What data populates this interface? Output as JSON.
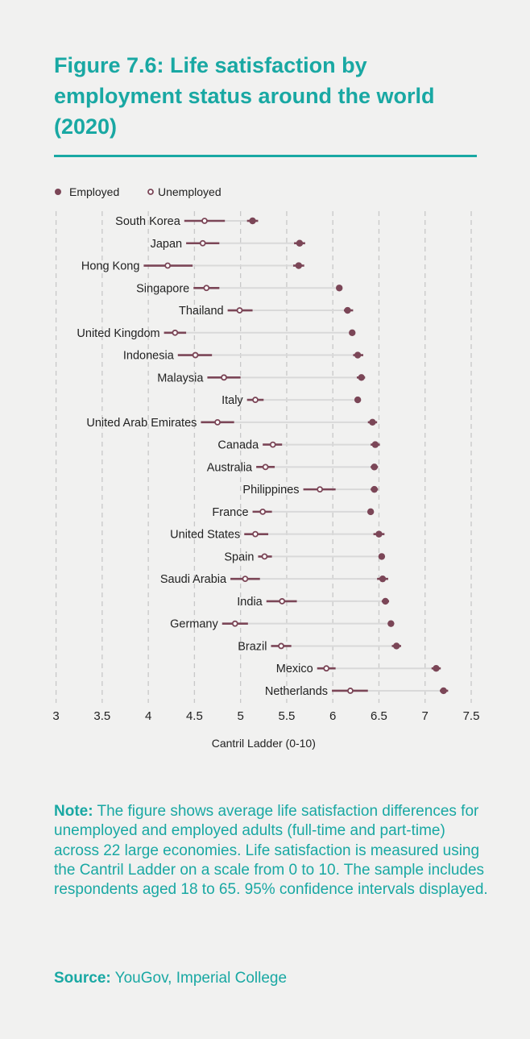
{
  "title": "Figure 7.6: Life satisfaction by employment status around the world (2020)",
  "note_label": "Note:",
  "note_text": " The figure shows average life satisfaction differences for unemployed and employed adults (full-time and part-time) across 22 large economies. Life satisfaction is measured using the Cantril Ladder on a scale from 0 to 10. The sample includes respondents aged 18 to 65. 95% confidence intervals displayed.",
  "source_label": "Source:",
  "source_text": " YouGov, Imperial College",
  "colors": {
    "accent": "#19a8a3",
    "series": "#7b4657",
    "ci_link": "#d9d9d9",
    "grid": "#c8c8c8"
  },
  "chart_data": {
    "type": "dot-plot with confidence intervals",
    "xlabel": "Cantril Ladder (0-10)",
    "xlim": [
      3,
      7.5
    ],
    "xticks": [
      "3",
      "3.5",
      "4",
      "4.5",
      "5",
      "5.5",
      "6",
      "6.5",
      "7",
      "7.5"
    ],
    "grid": "vertical dashed",
    "legend": {
      "placement": "top-left",
      "entries": [
        "Employed",
        "Unemployed"
      ]
    },
    "categories": [
      "South Korea",
      "Japan",
      "Hong Kong",
      "Singapore",
      "Thailand",
      "United Kingdom",
      "Indonesia",
      "Malaysia",
      "Italy",
      "United Arab Emirates",
      "Canada",
      "Australia",
      "Philippines",
      "France",
      "United States",
      "Spain",
      "Saudi Arabia",
      "India",
      "Germany",
      "Brazil",
      "Mexico",
      "Netherlands"
    ],
    "series": [
      {
        "name": "Employed",
        "values": [
          5.13,
          5.64,
          5.63,
          6.07,
          6.16,
          6.21,
          6.27,
          6.31,
          6.27,
          6.43,
          6.46,
          6.45,
          6.45,
          6.41,
          6.5,
          6.53,
          6.54,
          6.57,
          6.63,
          6.69,
          7.12,
          7.2
        ],
        "ci_low": [
          5.07,
          5.58,
          5.57,
          6.04,
          6.12,
          6.18,
          6.22,
          6.26,
          6.24,
          6.38,
          6.41,
          6.41,
          6.41,
          6.38,
          6.44,
          6.5,
          6.48,
          6.53,
          6.6,
          6.64,
          7.07,
          7.16
        ],
        "ci_high": [
          5.19,
          5.7,
          5.69,
          6.1,
          6.22,
          6.24,
          6.33,
          6.35,
          6.3,
          6.48,
          6.51,
          6.49,
          6.49,
          6.44,
          6.56,
          6.56,
          6.6,
          6.61,
          6.66,
          6.74,
          7.17,
          7.25
        ]
      },
      {
        "name": "Unemployed",
        "values": [
          4.61,
          4.59,
          4.21,
          4.63,
          4.99,
          4.29,
          4.51,
          4.82,
          5.16,
          4.75,
          5.35,
          5.27,
          5.86,
          5.24,
          5.16,
          5.26,
          5.05,
          5.45,
          4.94,
          5.44,
          5.93,
          6.19
        ],
        "ci_low": [
          4.39,
          4.41,
          3.95,
          4.49,
          4.86,
          4.17,
          4.32,
          4.64,
          5.07,
          4.57,
          5.24,
          5.17,
          5.68,
          5.13,
          5.04,
          5.19,
          4.89,
          5.28,
          4.8,
          5.33,
          5.83,
          5.99
        ],
        "ci_high": [
          4.83,
          4.77,
          4.48,
          4.77,
          5.13,
          4.41,
          4.69,
          5.0,
          5.25,
          4.93,
          5.45,
          5.37,
          6.03,
          5.34,
          5.3,
          5.34,
          5.21,
          5.61,
          5.08,
          5.55,
          6.03,
          6.38
        ]
      }
    ]
  }
}
